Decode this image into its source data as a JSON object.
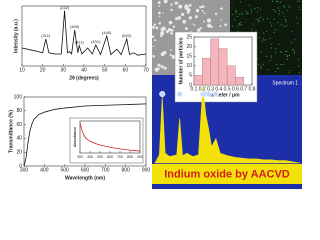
{
  "banner": "Indium oxide by AACVD",
  "chart_data": [
    {
      "type": "line",
      "xlabel": "2θ (degrees)",
      "ylabel": "Intensity (a.u.)",
      "color": "#111111",
      "x": [
        10,
        14,
        18,
        20,
        21.5,
        23,
        26,
        29,
        30.6,
        32,
        33.1,
        34,
        35.5,
        37,
        37.7,
        39,
        41.8,
        44,
        45.7,
        48,
        51,
        53,
        55.9,
        58,
        60.7,
        62,
        64,
        66,
        70
      ],
      "values": [
        30,
        27,
        24,
        22,
        45,
        22,
        20,
        20,
        92,
        22,
        24,
        20,
        60,
        22,
        34,
        20,
        30,
        20,
        35,
        19,
        50,
        19,
        28,
        19,
        45,
        19,
        22,
        18,
        20
      ],
      "xlim": [
        10,
        70
      ],
      "xticks": [
        10,
        20,
        30,
        40,
        50,
        60,
        70
      ],
      "ylim": [
        0,
        100
      ],
      "annotations": [
        {
          "text": "(211)",
          "x": 21.5
        },
        {
          "text": "(222)",
          "x": 30.6
        },
        {
          "text": "(400)",
          "x": 35.5
        },
        {
          "text": "(411)",
          "x": 37.7
        },
        {
          "text": "(431)",
          "x": 45.7
        },
        {
          "text": "(440)",
          "x": 51
        },
        {
          "text": "(622)",
          "x": 60.7
        }
      ]
    },
    {
      "type": "line",
      "xlabel": "Wavelength (nm)",
      "ylabel": "Transmittance (%)",
      "color": "#111111",
      "x": [
        300,
        310,
        320,
        330,
        340,
        350,
        370,
        400,
        450,
        500,
        600,
        700,
        800,
        900
      ],
      "values": [
        0,
        12,
        35,
        52,
        62,
        68,
        74,
        78,
        82,
        84,
        87,
        88,
        89,
        90
      ],
      "xlim": [
        300,
        900
      ],
      "xticks": [
        300,
        400,
        500,
        600,
        700,
        800,
        900
      ],
      "ylim": [
        0,
        100
      ],
      "yticks": [
        0,
        20,
        40,
        60,
        80,
        100
      ]
    },
    {
      "type": "line",
      "ylabel": "Absorbance",
      "color": "#d62020",
      "x": [
        300,
        320,
        340,
        360,
        400,
        450,
        500,
        600,
        700,
        800,
        900
      ],
      "values": [
        95,
        70,
        55,
        46,
        37,
        30,
        25,
        18,
        13,
        9,
        6
      ],
      "xlim": [
        300,
        900
      ],
      "xticks": [
        300,
        400,
        500,
        600,
        700,
        800,
        900
      ],
      "ylim": [
        0,
        100
      ]
    },
    {
      "type": "histogram",
      "xlabel": "Diameter / μm",
      "ylabel": "Number of particles",
      "color": "#f4b6bd",
      "bins": [
        0.1,
        0.2,
        0.3,
        0.4,
        0.5,
        0.6,
        0.7
      ],
      "values": [
        5,
        14,
        24,
        19,
        10,
        4
      ],
      "xlim": [
        0.1,
        0.8
      ],
      "xticks": [
        0.1,
        0.2,
        0.3,
        0.4,
        0.5,
        0.6,
        0.7,
        0.8
      ],
      "ylim": [
        0,
        25
      ],
      "yticks": [
        0,
        5,
        10,
        15,
        20,
        25
      ]
    },
    {
      "type": "area",
      "title": "Spectrum 1",
      "color": "#f2e20a",
      "x": [
        0,
        0.3,
        0.5,
        0.7,
        1,
        1.5,
        1.7,
        1.9,
        2.2,
        2.6,
        3,
        3.3,
        3.5,
        3.7,
        3.9,
        4.2,
        4.5,
        5,
        5.5,
        6,
        6.5,
        7,
        7.5,
        8,
        8.5,
        9,
        10
      ],
      "values": [
        0,
        10,
        82,
        12,
        8,
        10,
        55,
        9,
        12,
        8,
        10,
        95,
        60,
        42,
        20,
        30,
        12,
        9,
        7,
        6,
        5,
        5,
        4,
        4,
        3,
        3,
        0
      ],
      "xlim": [
        0,
        10
      ],
      "ylim": [
        0,
        100
      ]
    }
  ]
}
